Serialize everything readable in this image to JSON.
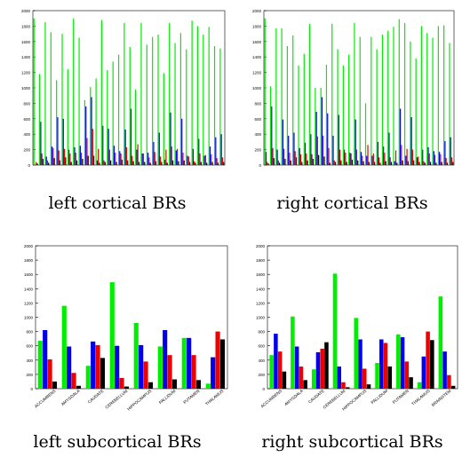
{
  "captions": [
    "left cortical BRs",
    "right cortical BRs",
    "left subcortical BRs",
    "right subcortical BRs"
  ],
  "colors": {
    "series1": "#00ee00",
    "series2": "#0000ee",
    "series3": "#ee0000",
    "series4": "#000000"
  },
  "chart_data": [
    {
      "type": "bar",
      "caption": "left cortical BRs",
      "ylim": [
        0,
        2000
      ],
      "yticks": [
        0,
        200,
        400,
        600,
        800,
        1000,
        1200,
        1400,
        1600,
        1800,
        2000
      ],
      "categories": [
        "",
        "",
        "",
        "",
        "",
        "",
        "",
        "",
        "",
        "",
        "",
        "",
        "",
        "",
        "",
        "",
        "",
        "",
        "",
        "",
        "",
        "",
        "",
        "",
        "",
        "",
        "",
        "",
        "",
        "",
        "",
        "",
        "",
        ""
      ],
      "series": [
        {
          "values": [
            1900,
            1180,
            1850,
            1720,
            1100,
            1700,
            1240,
            1900,
            1650,
            840,
            1010,
            1120,
            1880,
            1230,
            1340,
            1430,
            1840,
            1530,
            980,
            1840,
            1560,
            1660,
            1690,
            1190,
            1840,
            1580,
            1710,
            1500,
            1870,
            1800,
            1690,
            1790,
            1540,
            1510
          ]
        },
        {
          "values": [
            0,
            560,
            110,
            240,
            620,
            600,
            200,
            230,
            250,
            760,
            880,
            60,
            510,
            470,
            250,
            180,
            460,
            730,
            200,
            150,
            160,
            300,
            420,
            70,
            680,
            190,
            600,
            120,
            210,
            340,
            120,
            240,
            360,
            400
          ]
        },
        {
          "values": [
            40,
            150,
            60,
            220,
            190,
            210,
            150,
            160,
            160,
            350,
            470,
            210,
            60,
            200,
            160,
            150,
            230,
            120,
            270,
            150,
            100,
            170,
            110,
            200,
            240,
            210,
            160,
            110,
            50,
            150,
            130,
            140,
            90,
            100
          ]
        },
        {
          "values": [
            20,
            80,
            30,
            90,
            60,
            100,
            40,
            60,
            80,
            120,
            120,
            30,
            40,
            60,
            40,
            70,
            60,
            50,
            40,
            40,
            30,
            50,
            40,
            30,
            60,
            50,
            60,
            40,
            30,
            40,
            30,
            40,
            30,
            40
          ]
        }
      ]
    },
    {
      "type": "bar",
      "caption": "right cortical BRs",
      "ylim": [
        0,
        2000
      ],
      "yticks": [
        0,
        200,
        400,
        600,
        800,
        1000,
        1200,
        1400,
        1600,
        1800,
        2000
      ],
      "categories": [
        "",
        "",
        "",
        "",
        "",
        "",
        "",
        "",
        "",
        "",
        "",
        "",
        "",
        "",
        "",
        "",
        "",
        "",
        "",
        "",
        "",
        "",
        "",
        "",
        "",
        "",
        "",
        "",
        "",
        "",
        "",
        "",
        "",
        ""
      ],
      "series": [
        {
          "values": [
            1900,
            1020,
            1770,
            1770,
            1540,
            1680,
            1290,
            1440,
            1830,
            1000,
            1000,
            1300,
            1830,
            1500,
            1290,
            1430,
            1840,
            1660,
            800,
            1660,
            1500,
            1690,
            1740,
            1790,
            1890,
            1840,
            1600,
            1380,
            1800,
            1710,
            1650,
            1800,
            1810,
            1580
          ]
        },
        {
          "values": [
            170,
            760,
            200,
            590,
            380,
            420,
            220,
            290,
            400,
            690,
            880,
            670,
            380,
            650,
            200,
            160,
            590,
            170,
            120,
            120,
            300,
            240,
            420,
            50,
            730,
            120,
            620,
            100,
            200,
            230,
            180,
            170,
            310,
            360
          ]
        },
        {
          "values": [
            40,
            220,
            60,
            210,
            160,
            180,
            140,
            150,
            140,
            370,
            380,
            220,
            60,
            200,
            160,
            150,
            200,
            120,
            260,
            150,
            100,
            160,
            100,
            190,
            260,
            210,
            200,
            110,
            50,
            150,
            130,
            140,
            90,
            100
          ]
        },
        {
          "values": [
            20,
            90,
            30,
            80,
            60,
            100,
            40,
            60,
            80,
            130,
            110,
            30,
            40,
            60,
            40,
            70,
            60,
            50,
            40,
            40,
            30,
            50,
            40,
            30,
            60,
            50,
            60,
            40,
            30,
            40,
            30,
            40,
            30,
            40
          ]
        }
      ]
    },
    {
      "type": "bar",
      "caption": "left subcortical BRs",
      "ylim": [
        0,
        2000
      ],
      "yticks": [
        0,
        200,
        400,
        600,
        800,
        1000,
        1200,
        1400,
        1600,
        1800,
        2000
      ],
      "categories": [
        "ACCUMBENS",
        "AMYGDALA",
        "CAUDATE",
        "CEREBELLUM",
        "HIPPOCAMPUS",
        "PALLIDUM",
        "PUTAMEN",
        "THALAMUS"
      ],
      "series": [
        {
          "values": [
            670,
            1160,
            320,
            1490,
            920,
            590,
            710,
            70
          ]
        },
        {
          "values": [
            820,
            590,
            660,
            600,
            610,
            820,
            710,
            440
          ]
        },
        {
          "values": [
            410,
            220,
            610,
            150,
            380,
            470,
            470,
            800
          ]
        },
        {
          "values": [
            100,
            40,
            430,
            30,
            90,
            130,
            120,
            690
          ]
        }
      ]
    },
    {
      "type": "bar",
      "caption": "right subcortical BRs",
      "ylim": [
        0,
        2000
      ],
      "yticks": [
        0,
        200,
        400,
        600,
        800,
        1000,
        1200,
        1400,
        1600,
        1800,
        2000
      ],
      "categories": [
        "ACCUMBENS",
        "AMYGDALA",
        "CAUDATE",
        "CEREBELLUM",
        "HIPPOCAMPUS",
        "PALLIDUM",
        "PUTAMEN",
        "THALAMUS",
        "BRAINSTEM"
      ],
      "series": [
        {
          "values": [
            470,
            1010,
            270,
            1610,
            990,
            360,
            760,
            90,
            1290
          ]
        },
        {
          "values": [
            770,
            590,
            510,
            310,
            690,
            690,
            720,
            450,
            520
          ]
        },
        {
          "values": [
            520,
            310,
            560,
            90,
            280,
            640,
            380,
            800,
            190
          ]
        },
        {
          "values": [
            240,
            120,
            650,
            20,
            60,
            310,
            160,
            680,
            40
          ]
        }
      ]
    }
  ]
}
